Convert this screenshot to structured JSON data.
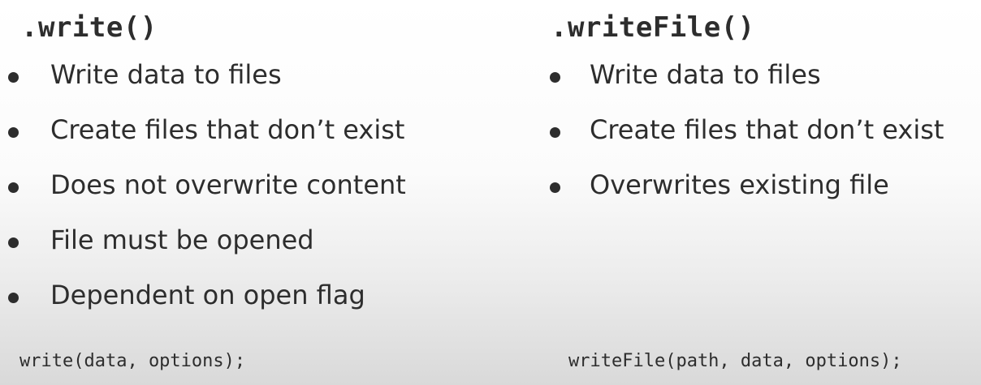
{
  "left": {
    "heading": ".write()",
    "bullets": [
      "Write data to files",
      "Create files that don’t exist",
      "Does not overwrite content",
      "File must be opened",
      "Dependent on open flag"
    ],
    "signature": "write(data, options);"
  },
  "right": {
    "heading": ".writeFile()",
    "bullets": [
      "Write data to files",
      "Create files that don’t exist",
      "Overwrites existing file"
    ],
    "signature": "writeFile(path, data, options);"
  },
  "colors": {
    "text": "#2d2d2d",
    "background_top": "#ffffff",
    "background_bottom": "#d9d9d9"
  },
  "icons": {
    "bullet": "bullet-dot-icon"
  }
}
